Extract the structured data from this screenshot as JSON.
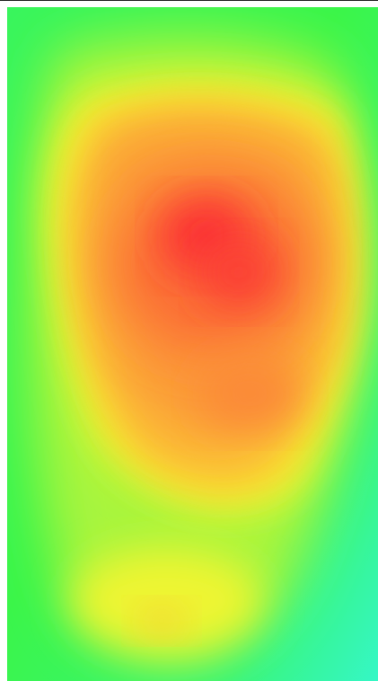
{
  "chart_data": {
    "type": "heatmap",
    "title": "",
    "legend": "none",
    "grid": false,
    "color_scale": [
      "#38f5c8",
      "#39f54f",
      "#a8f53a",
      "#f7f531",
      "#fbc534",
      "#fb8e36",
      "#fb2f31"
    ]
  }
}
